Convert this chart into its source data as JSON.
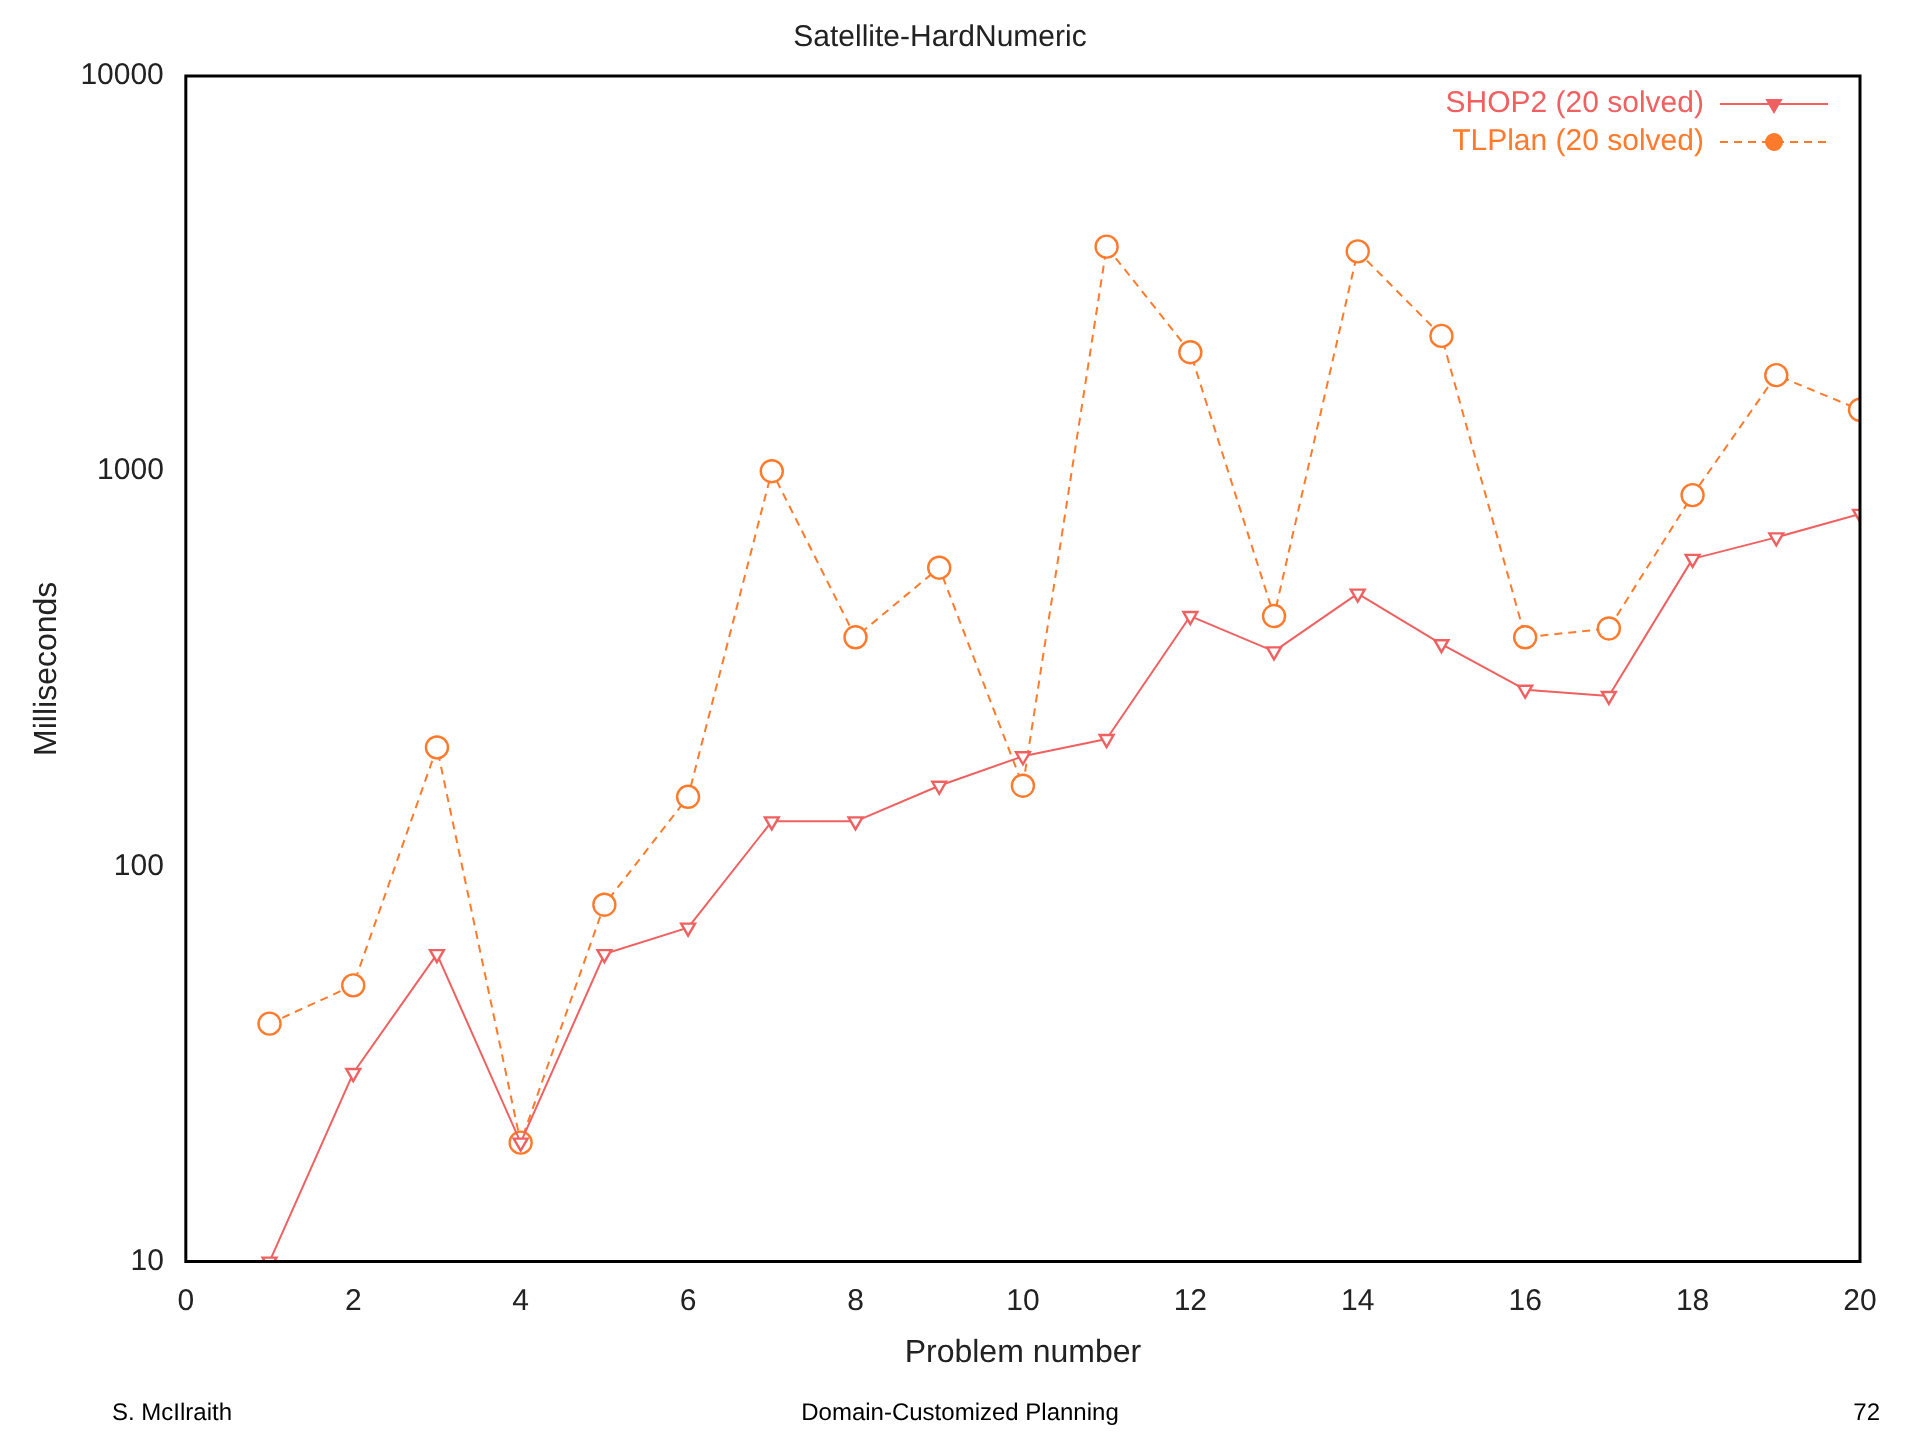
{
  "chart_data": {
    "type": "line",
    "title": "Satellite-HardNumeric",
    "xlabel": "Problem number",
    "ylabel": "Milliseconds",
    "x": [
      1,
      2,
      3,
      4,
      5,
      6,
      7,
      8,
      9,
      10,
      11,
      12,
      13,
      14,
      15,
      16,
      17,
      18,
      19,
      20
    ],
    "series": [
      {
        "name": "SHOP2 (20 solved)",
        "color": "#f06060",
        "marker": "triangle",
        "line_style": "solid",
        "values": [
          10,
          30,
          60,
          20,
          60,
          70,
          130,
          130,
          160,
          190,
          210,
          430,
          350,
          490,
          365,
          280,
          270,
          600,
          680,
          780
        ]
      },
      {
        "name": "TLPlan (20 solved)",
        "color": "#ff7a2a",
        "marker": "circle",
        "line_style": "dashed",
        "values": [
          40,
          50,
          200,
          20,
          80,
          150,
          1000,
          380,
          570,
          160,
          3700,
          2000,
          430,
          3600,
          2200,
          380,
          400,
          870,
          1750,
          1430
        ]
      }
    ],
    "xlim": [
      0,
      20
    ],
    "xticks": [
      0,
      2,
      4,
      6,
      8,
      10,
      12,
      14,
      16,
      18,
      20
    ],
    "ylim": [
      10,
      10000
    ],
    "yticks": [
      10,
      100,
      1000,
      10000
    ],
    "log": "y",
    "legend": "top right",
    "annotations": [
      "S. McIlraith",
      "Domain-Customized Planning",
      "72"
    ]
  }
}
